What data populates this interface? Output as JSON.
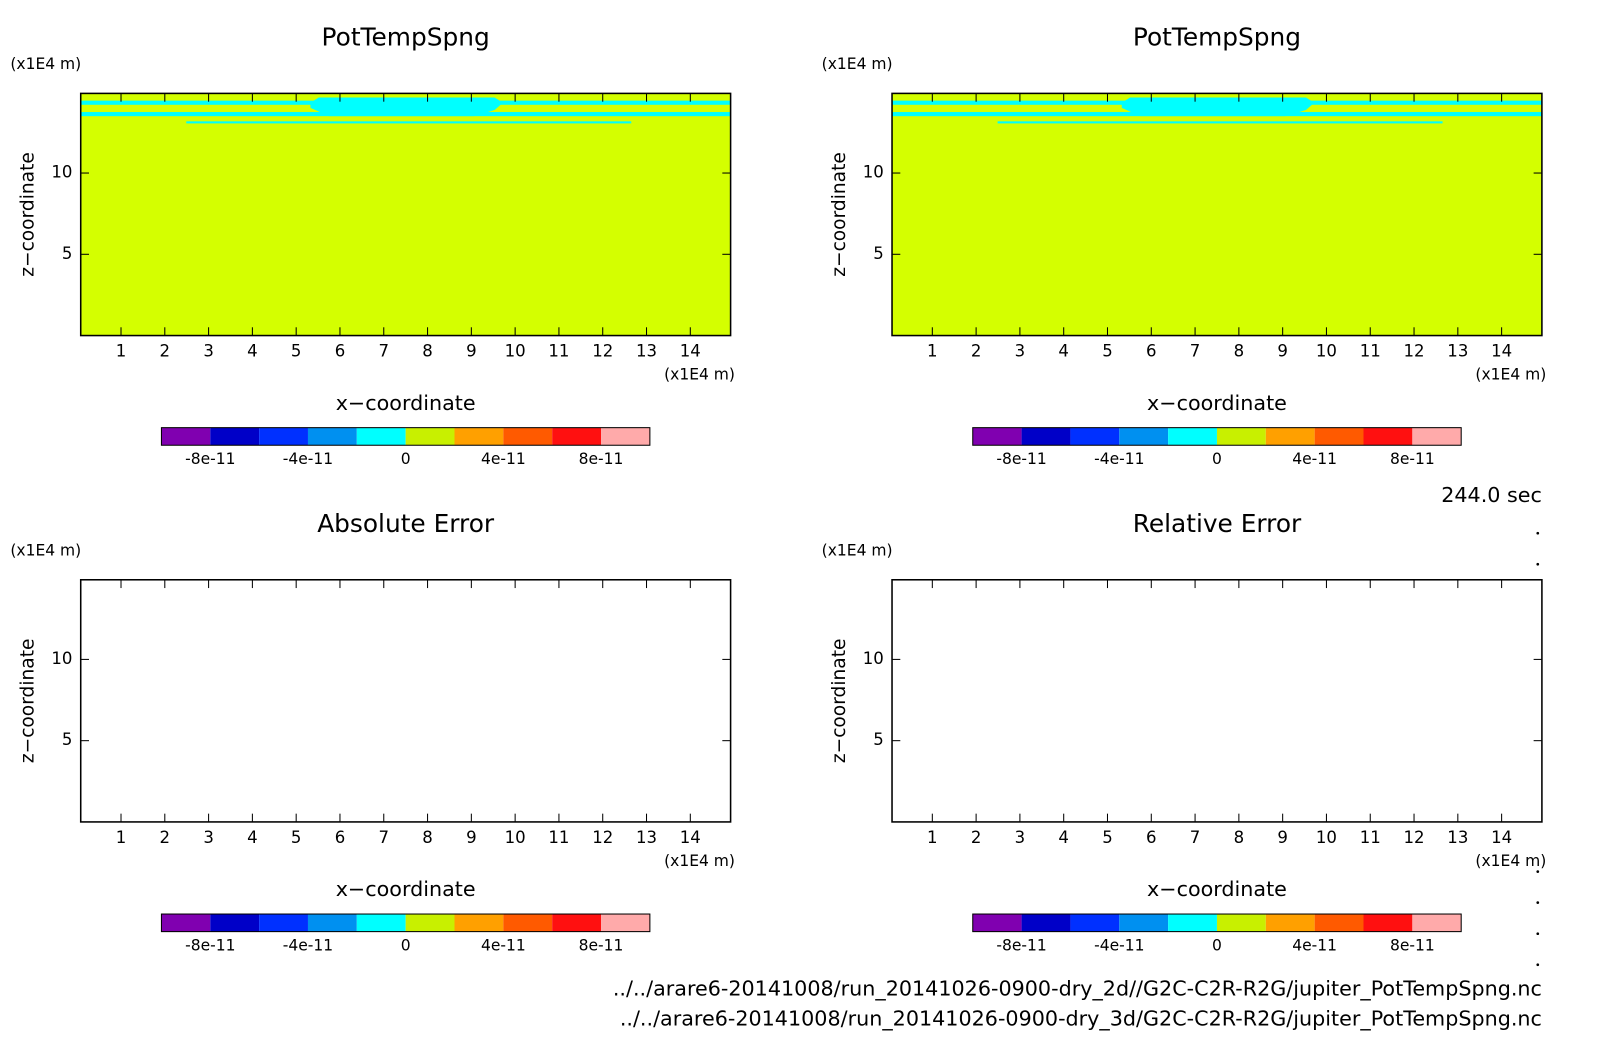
{
  "panels": [
    {
      "title": "PotTempSpng",
      "y_unit": "(x1E4 m)",
      "y_label": "z−coordinate",
      "x_unit": "(x1E4 m)",
      "x_label": "x−coordinate",
      "xlim": [
        0.08,
        14.92
      ],
      "ylim": [
        0,
        14.9
      ],
      "xticks": [
        1,
        2,
        3,
        4,
        5,
        6,
        7,
        8,
        9,
        10,
        11,
        12,
        13,
        14
      ],
      "yticks": [
        5,
        10
      ],
      "filled": true
    },
    {
      "title": "PotTempSpng",
      "y_unit": "(x1E4 m)",
      "y_label": "z−coordinate",
      "x_unit": "(x1E4 m)",
      "x_label": "x−coordinate",
      "xlim": [
        0.08,
        14.92
      ],
      "ylim": [
        0,
        14.9
      ],
      "xticks": [
        1,
        2,
        3,
        4,
        5,
        6,
        7,
        8,
        9,
        10,
        11,
        12,
        13,
        14
      ],
      "yticks": [
        5,
        10
      ],
      "filled": true
    },
    {
      "title": "Absolute Error",
      "y_unit": "(x1E4 m)",
      "y_label": "z−coordinate",
      "x_unit": "(x1E4 m)",
      "x_label": "x−coordinate",
      "xlim": [
        0.08,
        14.92
      ],
      "ylim": [
        0,
        14.9
      ],
      "xticks": [
        1,
        2,
        3,
        4,
        5,
        6,
        7,
        8,
        9,
        10,
        11,
        12,
        13,
        14
      ],
      "yticks": [
        5,
        10
      ],
      "filled": false
    },
    {
      "title": "Relative Error",
      "y_unit": "(x1E4 m)",
      "y_label": "z−coordinate",
      "x_unit": "(x1E4 m)",
      "x_label": "x−coordinate",
      "xlim": [
        0.08,
        14.92
      ],
      "ylim": [
        0,
        14.9
      ],
      "xticks": [
        1,
        2,
        3,
        4,
        5,
        6,
        7,
        8,
        9,
        10,
        11,
        12,
        13,
        14
      ],
      "yticks": [
        5,
        10
      ],
      "filled": false
    }
  ],
  "field_color": "#d4ff00",
  "contour_color": "#00ffff",
  "colorbar": {
    "levels": [
      -1e-10,
      -8e-11,
      -6e-11,
      -4e-11,
      -2e-11,
      0,
      2e-11,
      4e-11,
      6e-11,
      8e-11,
      1e-10
    ],
    "colors": [
      "#8000b0",
      "#0000c8",
      "#0030ff",
      "#0090f0",
      "#00ffff",
      "#c8f000",
      "#ffa000",
      "#ff5a00",
      "#ff1010",
      "#ffaaaa"
    ],
    "ticks": [
      -8e-11,
      -4e-11,
      0,
      4e-11,
      8e-11
    ]
  },
  "time_label": "244.0 sec",
  "files": [
    "../../arare6-20141008/run_20141026-0900-dry_2d//G2C-C2R-R2G/jupiter_PotTempSpng.nc",
    "../../arare6-20141008/run_20141026-0900-dry_3d/G2C-C2R-R2G/jupiter_PotTempSpng.nc"
  ]
}
